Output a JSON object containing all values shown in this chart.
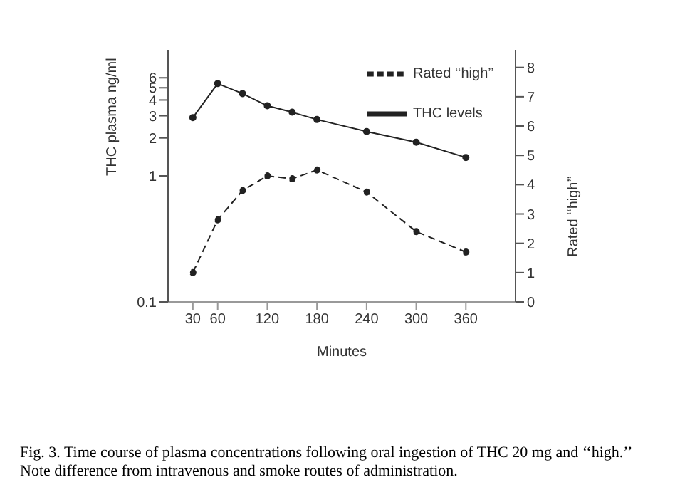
{
  "chart_data": {
    "type": "line",
    "xlabel": "Minutes",
    "ylabel": "THC plasma ng/ml",
    "y2label": "Rated ‘‘high’’",
    "annotations": [
      "Fig. 3. Time course of plasma concentrations following oral ingestion of THC 20 mg and ‘‘high.’’ Note difference from intravenous and smoke routes of administration."
    ],
    "x": [
      30,
      60,
      90,
      120,
      150,
      180,
      240,
      300,
      360
    ],
    "series": [
      {
        "name": "THC levels",
        "color": "#222222",
        "line_style": "solid",
        "values": [
          2.9,
          5.4,
          4.5,
          3.6,
          3.2,
          2.8,
          2.25,
          1.85,
          1.4
        ]
      },
      {
        "name": "Rated ‘‘high’’",
        "color": "#222222",
        "line_style": "dashed",
        "axis": "y2",
        "values": [
          1.0,
          2.8,
          3.8,
          4.3,
          4.2,
          4.5,
          3.75,
          2.4,
          1.7
        ]
      }
    ],
    "xlim": [
      0,
      420
    ],
    "xticks": [
      30,
      60,
      120,
      180,
      240,
      300,
      360
    ],
    "log": "y",
    "ylim": [
      0.1,
      10
    ],
    "yticks": [
      0.1,
      1,
      2,
      3,
      4,
      5,
      6
    ],
    "y2lim": [
      0,
      8.6
    ],
    "y2ticks": [
      0,
      1,
      2,
      3,
      4,
      5,
      6,
      7,
      8
    ],
    "marker": "circle",
    "grid": false,
    "legend": "top right"
  }
}
